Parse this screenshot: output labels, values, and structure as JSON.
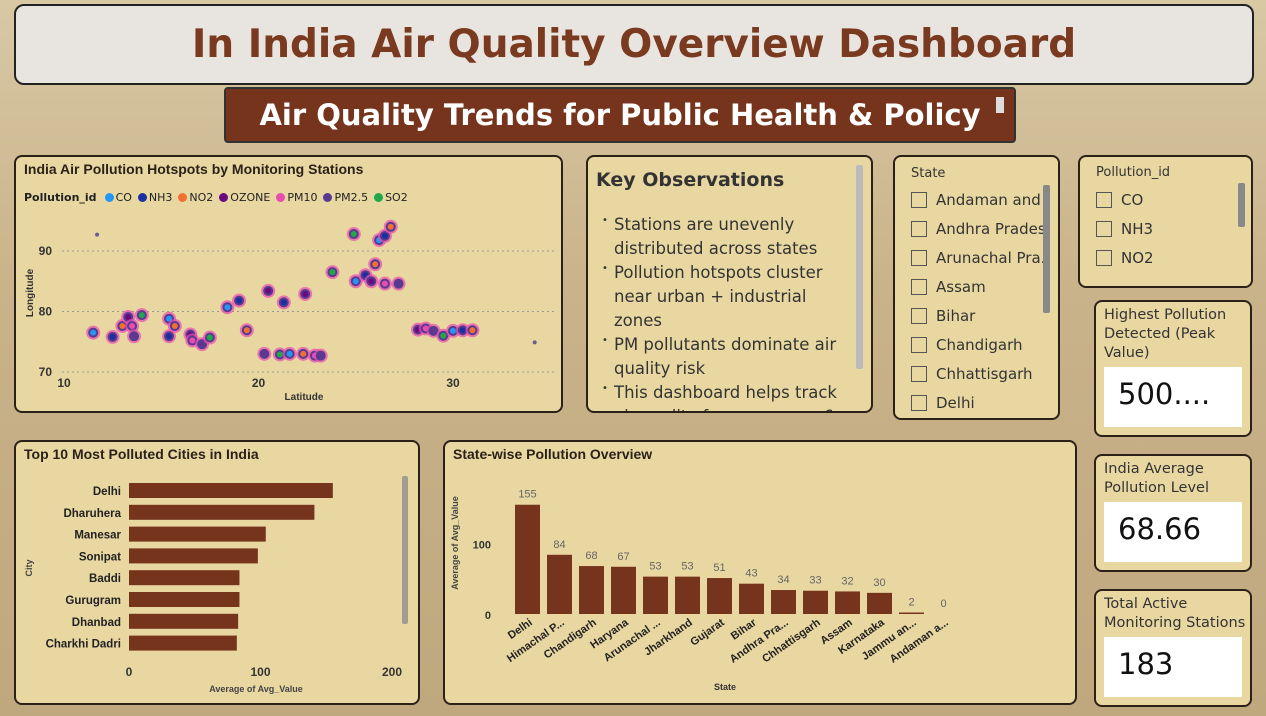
{
  "header": {
    "title": "In India Air Quality Overview Dashboard",
    "subtitle": "Air Quality Trends for Public Health & Policy"
  },
  "scatter": {
    "title": "India Air Pollution Hotspots by Monitoring Stations",
    "legend_title": "Pollution_id",
    "legend": [
      {
        "name": "CO",
        "color": "#2196f3"
      },
      {
        "name": "NH3",
        "color": "#1a2fa0"
      },
      {
        "name": "NO2",
        "color": "#f07030"
      },
      {
        "name": "OZONE",
        "color": "#6a0a80"
      },
      {
        "name": "PM10",
        "color": "#e84cb0"
      },
      {
        "name": "PM2.5",
        "color": "#5a3a90"
      },
      {
        "name": "SO2",
        "color": "#1fa84a"
      }
    ],
    "xlabel": "Latitude",
    "ylabel": "Longitude"
  },
  "observations": {
    "title": "Key Observations",
    "items": [
      "Stations are unevenly distributed across states",
      "Pollution hotspots cluster near urban + industrial zones",
      "PM pollutants dominate air quality risk",
      "This dashboard helps track air quality for awareness &"
    ]
  },
  "state_slicer": {
    "title": "State",
    "items": [
      "Andaman and ...",
      "Andhra Pradesh",
      "Arunachal Pra...",
      "Assam",
      "Bihar",
      "Chandigarh",
      "Chhattisgarh",
      "Delhi"
    ]
  },
  "pollution_slicer": {
    "title": "Pollution_id",
    "items": [
      "CO",
      "NH3",
      "NO2"
    ]
  },
  "kpis": [
    {
      "label": "Highest Pollution Detected (Peak Value)",
      "value": "500...."
    },
    {
      "label": "India Average Pollution Level",
      "value": "68.66"
    },
    {
      "label": "Total Active Monitoring Stations",
      "value": "183"
    }
  ],
  "top_cities": {
    "title": "Top 10 Most Polluted Cities in India"
  },
  "state_chart": {
    "title": "State-wise Pollution Overview"
  },
  "chart_data": [
    {
      "type": "scatter",
      "title": "India Air Pollution Hotspots by Monitoring Stations",
      "xlabel": "Latitude",
      "ylabel": "Longitude",
      "xlim": [
        10,
        35
      ],
      "ylim": [
        70,
        95
      ],
      "xticks": [
        10,
        20,
        30
      ],
      "yticks": [
        70,
        80,
        90
      ],
      "grid": true,
      "legend_position": "top-left",
      "points": [
        [
          11.5,
          76.5
        ],
        [
          12.5,
          75.8
        ],
        [
          13,
          77.6
        ],
        [
          13.3,
          79.1
        ],
        [
          13.5,
          77.6
        ],
        [
          13.6,
          75.9
        ],
        [
          14,
          79.4
        ],
        [
          15.4,
          78.8
        ],
        [
          15.4,
          75.9
        ],
        [
          15.7,
          77.6
        ],
        [
          16.5,
          76.2
        ],
        [
          16.6,
          75.2
        ],
        [
          17.1,
          74.6
        ],
        [
          17.5,
          75.7
        ],
        [
          18.4,
          80.7
        ],
        [
          19,
          81.8
        ],
        [
          19.4,
          76.9
        ],
        [
          20.5,
          83.4
        ],
        [
          11.7,
          92.7
        ],
        [
          20.3,
          73
        ],
        [
          21.1,
          72.9
        ],
        [
          21.6,
          73
        ],
        [
          21.3,
          81.5
        ],
        [
          22.3,
          73
        ],
        [
          22.4,
          82.9
        ],
        [
          22.9,
          72.7
        ],
        [
          23.2,
          72.7
        ],
        [
          23.8,
          86.5
        ],
        [
          25,
          85
        ],
        [
          25.5,
          86
        ],
        [
          26,
          87.8
        ],
        [
          25.8,
          85
        ],
        [
          26.5,
          84.6
        ],
        [
          27.2,
          84.6
        ],
        [
          24.9,
          92.8
        ],
        [
          26.2,
          91.8
        ],
        [
          26.5,
          92.5
        ],
        [
          26.8,
          94
        ],
        [
          28.2,
          77
        ],
        [
          28.6,
          77.2
        ],
        [
          29,
          76.8
        ],
        [
          29.5,
          76
        ],
        [
          30,
          76.8
        ],
        [
          30.5,
          76.9
        ],
        [
          31,
          76.9
        ],
        [
          34.2,
          74.9
        ]
      ]
    },
    {
      "type": "bar",
      "orientation": "horizontal",
      "title": "Top 10 Most Polluted Cities in India",
      "xlabel": "Average of Avg_Value",
      "ylabel": "City",
      "xlim": [
        0,
        200
      ],
      "xticks": [
        0,
        100,
        200
      ],
      "categories": [
        "Delhi",
        "Dharuhera",
        "Manesar",
        "Sonipat",
        "Baddi",
        "Gurugram",
        "Dhanbad",
        "Charkhi Dadri"
      ],
      "values": [
        155,
        141,
        104,
        98,
        84,
        84,
        83,
        82
      ]
    },
    {
      "type": "bar",
      "title": "State-wise Pollution Overview",
      "xlabel": "State",
      "ylabel": "Average of Avg_Value",
      "yticks": [
        0,
        100
      ],
      "categories": [
        "Delhi",
        "Himachal P...",
        "Chandigarh",
        "Haryana",
        "Arunachal ...",
        "Jharkhand",
        "Gujarat",
        "Bihar",
        "Andhra Pra...",
        "Chhattisgarh",
        "Assam",
        "Karnataka",
        "Jammu an...",
        "Andaman a..."
      ],
      "values": [
        155,
        84,
        68,
        67,
        53,
        53,
        51,
        43,
        34,
        33,
        32,
        30,
        2,
        0
      ]
    }
  ]
}
